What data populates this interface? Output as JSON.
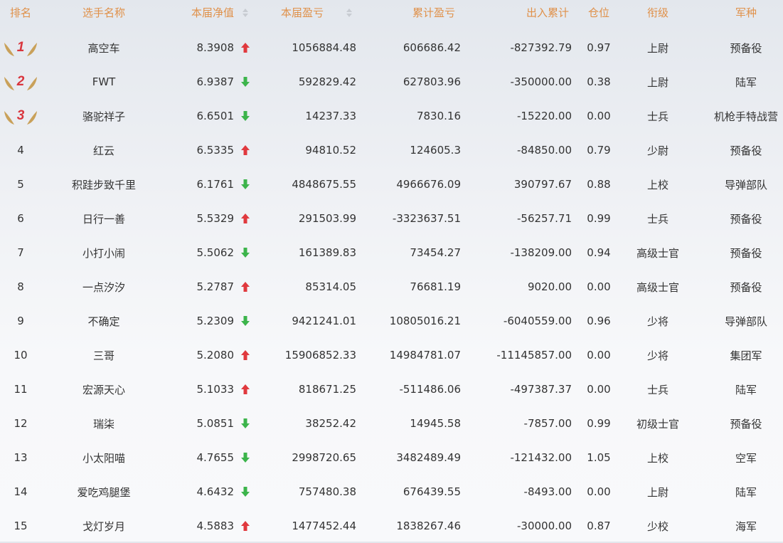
{
  "header": {
    "rank": "排名",
    "name": "选手名称",
    "net_value": "本届净值",
    "profit": "本届盈亏",
    "cum_profit": "累计盈亏",
    "flow": "出入累计",
    "position": "仓位",
    "rank_title": "衔级",
    "branch": "军种"
  },
  "colors": {
    "header": "#e0914a",
    "up": "#e0393e",
    "down": "#3cb44b",
    "medal_number": "#d9363e",
    "wing": "#c9a15a"
  },
  "rows": [
    {
      "rank": "1",
      "medal": true,
      "name": "高空车",
      "net": "8.3908",
      "trend": "up",
      "profit": "1056884.48",
      "cum": "606686.42",
      "flow": "-827392.79",
      "pos": "0.97",
      "title": "上尉",
      "branch": "预备役"
    },
    {
      "rank": "2",
      "medal": true,
      "name": "FWT",
      "net": "6.9387",
      "trend": "down",
      "profit": "592829.42",
      "cum": "627803.96",
      "flow": "-350000.00",
      "pos": "0.38",
      "title": "上尉",
      "branch": "陆军"
    },
    {
      "rank": "3",
      "medal": true,
      "name": "骆驼祥子",
      "net": "6.6501",
      "trend": "down",
      "profit": "14237.33",
      "cum": "7830.16",
      "flow": "-15220.00",
      "pos": "0.00",
      "title": "士兵",
      "branch": "机枪手特战营"
    },
    {
      "rank": "4",
      "name": "红云",
      "net": "6.5335",
      "trend": "up",
      "profit": "94810.52",
      "cum": "124605.3",
      "flow": "-84850.00",
      "pos": "0.79",
      "title": "少尉",
      "branch": "预备役"
    },
    {
      "rank": "5",
      "name": "积跬步致千里",
      "net": "6.1761",
      "trend": "down",
      "profit": "4848675.55",
      "cum": "4966676.09",
      "flow": "390797.67",
      "pos": "0.88",
      "title": "上校",
      "branch": "导弹部队"
    },
    {
      "rank": "6",
      "name": "日行一善",
      "net": "5.5329",
      "trend": "up",
      "profit": "291503.99",
      "cum": "-3323637.51",
      "flow": "-56257.71",
      "pos": "0.99",
      "title": "士兵",
      "branch": "预备役"
    },
    {
      "rank": "7",
      "name": "小打小闹",
      "net": "5.5062",
      "trend": "down",
      "profit": "161389.83",
      "cum": "73454.27",
      "flow": "-138209.00",
      "pos": "0.94",
      "title": "高级士官",
      "branch": "预备役"
    },
    {
      "rank": "8",
      "name": "一点汐汐",
      "net": "5.2787",
      "trend": "up",
      "profit": "85314.05",
      "cum": "76681.19",
      "flow": "9020.00",
      "pos": "0.00",
      "title": "高级士官",
      "branch": "预备役"
    },
    {
      "rank": "9",
      "name": "不确定",
      "net": "5.2309",
      "trend": "down",
      "profit": "9421241.01",
      "cum": "10805016.21",
      "flow": "-6040559.00",
      "pos": "0.96",
      "title": "少将",
      "branch": "导弹部队"
    },
    {
      "rank": "10",
      "name": "三哥",
      "net": "5.2080",
      "trend": "up",
      "profit": "15906852.33",
      "cum": "14984781.07",
      "flow": "-11145857.00",
      "pos": "0.00",
      "title": "少将",
      "branch": "集团军"
    },
    {
      "rank": "11",
      "name": "宏源天心",
      "net": "5.1033",
      "trend": "up",
      "profit": "818671.25",
      "cum": "-511486.06",
      "flow": "-497387.37",
      "pos": "0.00",
      "title": "士兵",
      "branch": "陆军"
    },
    {
      "rank": "12",
      "name": "瑞柒",
      "net": "5.0851",
      "trend": "down",
      "profit": "38252.42",
      "cum": "14945.58",
      "flow": "-7857.00",
      "pos": "0.99",
      "title": "初级士官",
      "branch": "预备役"
    },
    {
      "rank": "13",
      "name": "小太阳喵",
      "net": "4.7655",
      "trend": "down",
      "profit": "2998720.65",
      "cum": "3482489.49",
      "flow": "-121432.00",
      "pos": "1.05",
      "title": "上校",
      "branch": "空军"
    },
    {
      "rank": "14",
      "name": "爱吃鸡腿堡",
      "net": "4.6432",
      "trend": "down",
      "profit": "757480.38",
      "cum": "676439.55",
      "flow": "-8493.00",
      "pos": "0.00",
      "title": "上尉",
      "branch": "陆军"
    },
    {
      "rank": "15",
      "name": "戈灯岁月",
      "net": "4.5883",
      "trend": "up",
      "profit": "1477452.44",
      "cum": "1838267.46",
      "flow": "-30000.00",
      "pos": "0.87",
      "title": "少校",
      "branch": "海军"
    }
  ]
}
